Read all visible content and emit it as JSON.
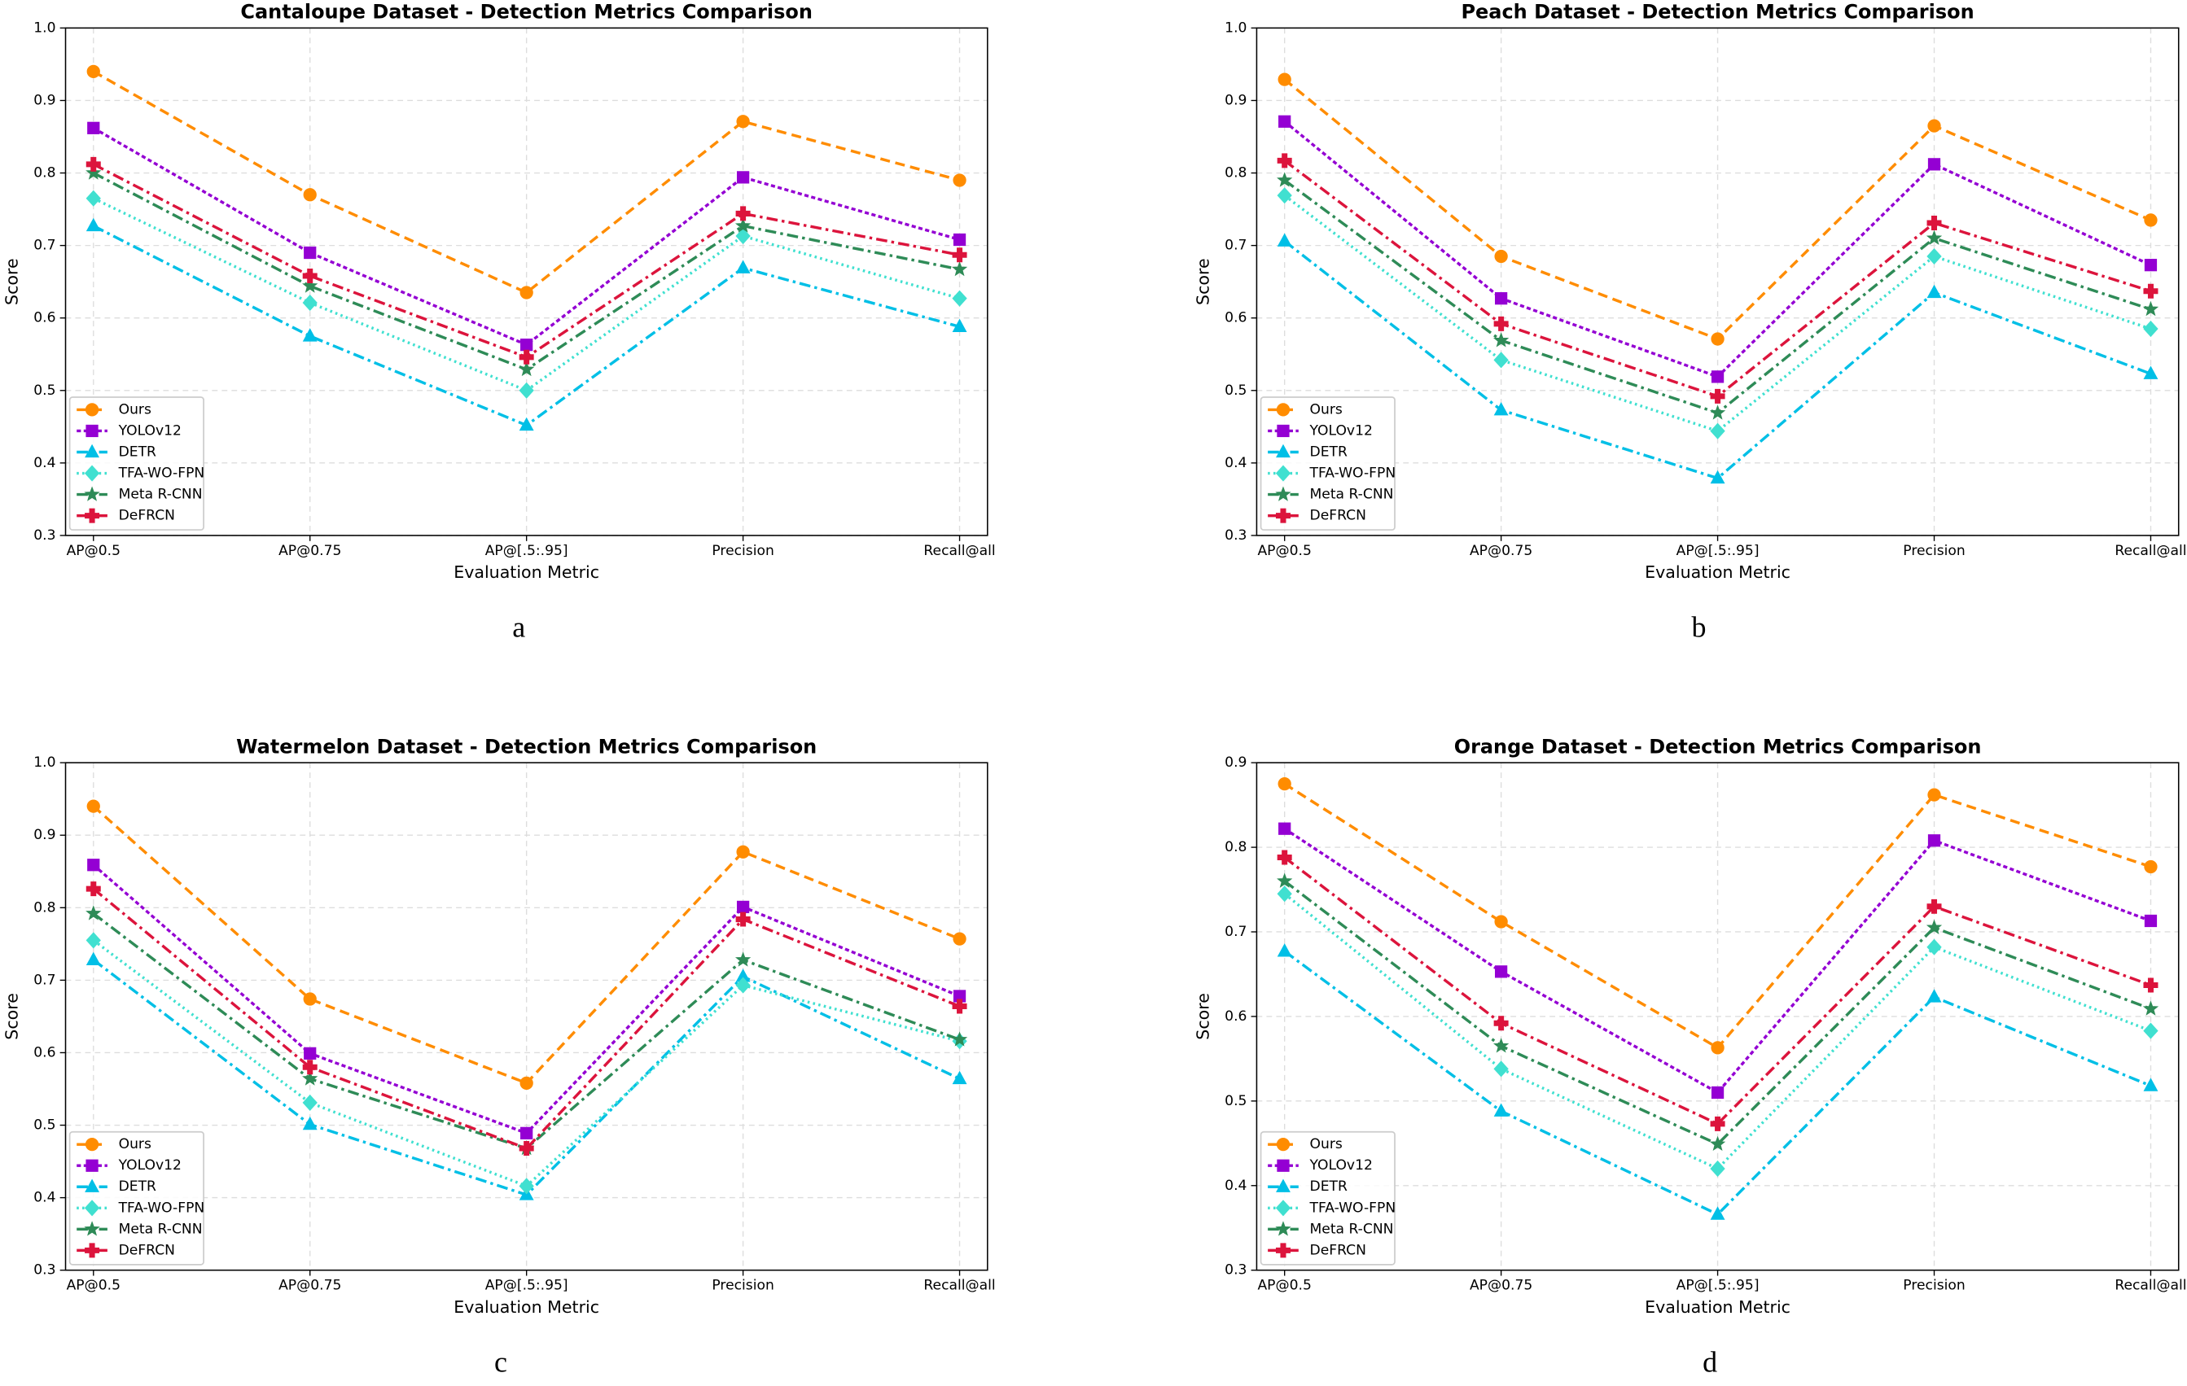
{
  "chart_data": [
    {
      "type": "line",
      "title": "Cantaloupe Dataset - Detection Metrics Comparison",
      "caption": "a",
      "xlabel": "Evaluation Metric",
      "ylabel": "Score",
      "categories": [
        "AP@0.5",
        "AP@0.75",
        "AP@[.5:.95]",
        "Precision",
        "Recall@all"
      ],
      "series": [
        {
          "name": "Ours",
          "color": "#ff8c00",
          "linestyle": "dashed",
          "marker": "circle",
          "values": [
            0.94,
            0.77,
            0.635,
            0.871,
            0.79
          ]
        },
        {
          "name": "YOLOv12",
          "color": "#9400d3",
          "linestyle": "short-dashed",
          "marker": "square",
          "values": [
            0.862,
            0.69,
            0.563,
            0.794,
            0.708
          ]
        },
        {
          "name": "DETR",
          "color": "#00bfe6",
          "linestyle": "dash-dot",
          "marker": "triangle",
          "values": [
            0.727,
            0.575,
            0.452,
            0.669,
            0.588
          ]
        },
        {
          "name": "TFA-WO-FPN",
          "color": "#40e0d0",
          "linestyle": "dotted",
          "marker": "diamond",
          "values": [
            0.765,
            0.621,
            0.5,
            0.713,
            0.627
          ]
        },
        {
          "name": "Meta R-CNN",
          "color": "#2e8b57",
          "linestyle": "dash-dot",
          "marker": "star",
          "values": [
            0.8,
            0.644,
            0.529,
            0.727,
            0.667
          ]
        },
        {
          "name": "DeFRCN",
          "color": "#dc143c",
          "linestyle": "dash-dot",
          "marker": "plus",
          "values": [
            0.812,
            0.658,
            0.546,
            0.744,
            0.687
          ]
        }
      ],
      "ylim": [
        0.3,
        1
      ],
      "yticks": [
        0.3,
        0.4,
        0.5,
        0.6,
        0.7,
        0.8,
        0.9,
        {
          "value": 1,
          "label": "1.0"
        }
      ],
      "grid": true,
      "legend": "lower left"
    },
    {
      "type": "line",
      "title": "Peach Dataset - Detection Metrics Comparison",
      "caption": "b",
      "xlabel": "Evaluation Metric",
      "ylabel": "Score",
      "categories": [
        "AP@0.5",
        "AP@0.75",
        "AP@[.5:.95]",
        "Precision",
        "Recall@all"
      ],
      "series": [
        {
          "name": "Ours",
          "color": "#ff8c00",
          "linestyle": "dashed",
          "marker": "circle",
          "values": [
            0.929,
            0.685,
            0.571,
            0.865,
            0.735
          ]
        },
        {
          "name": "YOLOv12",
          "color": "#9400d3",
          "linestyle": "short-dashed",
          "marker": "square",
          "values": [
            0.871,
            0.627,
            0.519,
            0.812,
            0.673
          ]
        },
        {
          "name": "DETR",
          "color": "#00bfe6",
          "linestyle": "dash-dot",
          "marker": "triangle",
          "values": [
            0.706,
            0.473,
            0.379,
            0.635,
            0.523
          ]
        },
        {
          "name": "TFA-WO-FPN",
          "color": "#40e0d0",
          "linestyle": "dotted",
          "marker": "diamond",
          "values": [
            0.769,
            0.542,
            0.444,
            0.685,
            0.585
          ]
        },
        {
          "name": "Meta R-CNN",
          "color": "#2e8b57",
          "linestyle": "dash-dot",
          "marker": "star",
          "values": [
            0.79,
            0.569,
            0.469,
            0.71,
            0.612
          ]
        },
        {
          "name": "DeFRCN",
          "color": "#dc143c",
          "linestyle": "dash-dot",
          "marker": "plus",
          "values": [
            0.817,
            0.592,
            0.492,
            0.731,
            0.637
          ]
        }
      ],
      "ylim": [
        0.3,
        1
      ],
      "yticks": [
        0.3,
        0.4,
        0.5,
        0.6,
        0.7,
        0.8,
        0.9,
        {
          "value": 1,
          "label": "1.0"
        }
      ],
      "grid": true,
      "legend": "lower left"
    },
    {
      "type": "line",
      "title": "Watermelon Dataset - Detection Metrics Comparison",
      "caption": "c",
      "xlabel": "Evaluation Metric",
      "ylabel": "Score",
      "categories": [
        "AP@0.5",
        "AP@0.75",
        "AP@[.5:.95]",
        "Precision",
        "Recall@all"
      ],
      "series": [
        {
          "name": "Ours",
          "color": "#ff8c00",
          "linestyle": "dashed",
          "marker": "circle",
          "values": [
            0.94,
            0.674,
            0.558,
            0.877,
            0.757
          ]
        },
        {
          "name": "YOLOv12",
          "color": "#9400d3",
          "linestyle": "short-dashed",
          "marker": "square",
          "values": [
            0.859,
            0.599,
            0.489,
            0.801,
            0.678
          ]
        },
        {
          "name": "DETR",
          "color": "#00bfe6",
          "linestyle": "dash-dot",
          "marker": "triangle",
          "values": [
            0.728,
            0.501,
            0.404,
            0.705,
            0.564
          ]
        },
        {
          "name": "TFA-WO-FPN",
          "color": "#40e0d0",
          "linestyle": "dotted",
          "marker": "diamond",
          "values": [
            0.755,
            0.531,
            0.416,
            0.693,
            0.616
          ]
        },
        {
          "name": "Meta R-CNN",
          "color": "#2e8b57",
          "linestyle": "dash-dot",
          "marker": "star",
          "values": [
            0.792,
            0.564,
            0.468,
            0.728,
            0.618
          ]
        },
        {
          "name": "DeFRCN",
          "color": "#dc143c",
          "linestyle": "dash-dot",
          "marker": "plus",
          "values": [
            0.826,
            0.58,
            0.468,
            0.784,
            0.664
          ]
        }
      ],
      "ylim": [
        0.3,
        1
      ],
      "yticks": [
        0.3,
        0.4,
        0.5,
        0.6,
        0.7,
        0.8,
        0.9,
        {
          "value": 1,
          "label": "1.0"
        }
      ],
      "grid": true,
      "legend": "lower left"
    },
    {
      "type": "line",
      "title": "Orange Dataset - Detection Metrics Comparison",
      "caption": "d",
      "xlabel": "Evaluation Metric",
      "ylabel": "Score",
      "categories": [
        "AP@0.5",
        "AP@0.75",
        "AP@[.5:.95]",
        "Precision",
        "Recall@all"
      ],
      "series": [
        {
          "name": "Ours",
          "color": "#ff8c00",
          "linestyle": "dashed",
          "marker": "circle",
          "values": [
            0.875,
            0.712,
            0.563,
            0.862,
            0.777
          ]
        },
        {
          "name": "YOLOv12",
          "color": "#9400d3",
          "linestyle": "short-dashed",
          "marker": "square",
          "values": [
            0.822,
            0.653,
            0.51,
            0.808,
            0.713
          ]
        },
        {
          "name": "DETR",
          "color": "#00bfe6",
          "linestyle": "dash-dot",
          "marker": "triangle",
          "values": [
            0.677,
            0.488,
            0.366,
            0.623,
            0.518
          ]
        },
        {
          "name": "TFA-WO-FPN",
          "color": "#40e0d0",
          "linestyle": "dotted",
          "marker": "diamond",
          "values": [
            0.745,
            0.538,
            0.42,
            0.682,
            0.583
          ]
        },
        {
          "name": "Meta R-CNN",
          "color": "#2e8b57",
          "linestyle": "dash-dot",
          "marker": "star",
          "values": [
            0.76,
            0.565,
            0.449,
            0.705,
            0.609
          ]
        },
        {
          "name": "DeFRCN",
          "color": "#dc143c",
          "linestyle": "dash-dot",
          "marker": "plus",
          "values": [
            0.788,
            0.592,
            0.473,
            0.73,
            0.637
          ]
        }
      ],
      "ylim": [
        0.3,
        0.9
      ],
      "yticks": [
        0.3,
        0.4,
        0.5,
        0.6,
        0.7,
        0.8,
        0.9
      ],
      "grid": true,
      "legend": "lower left"
    }
  ]
}
